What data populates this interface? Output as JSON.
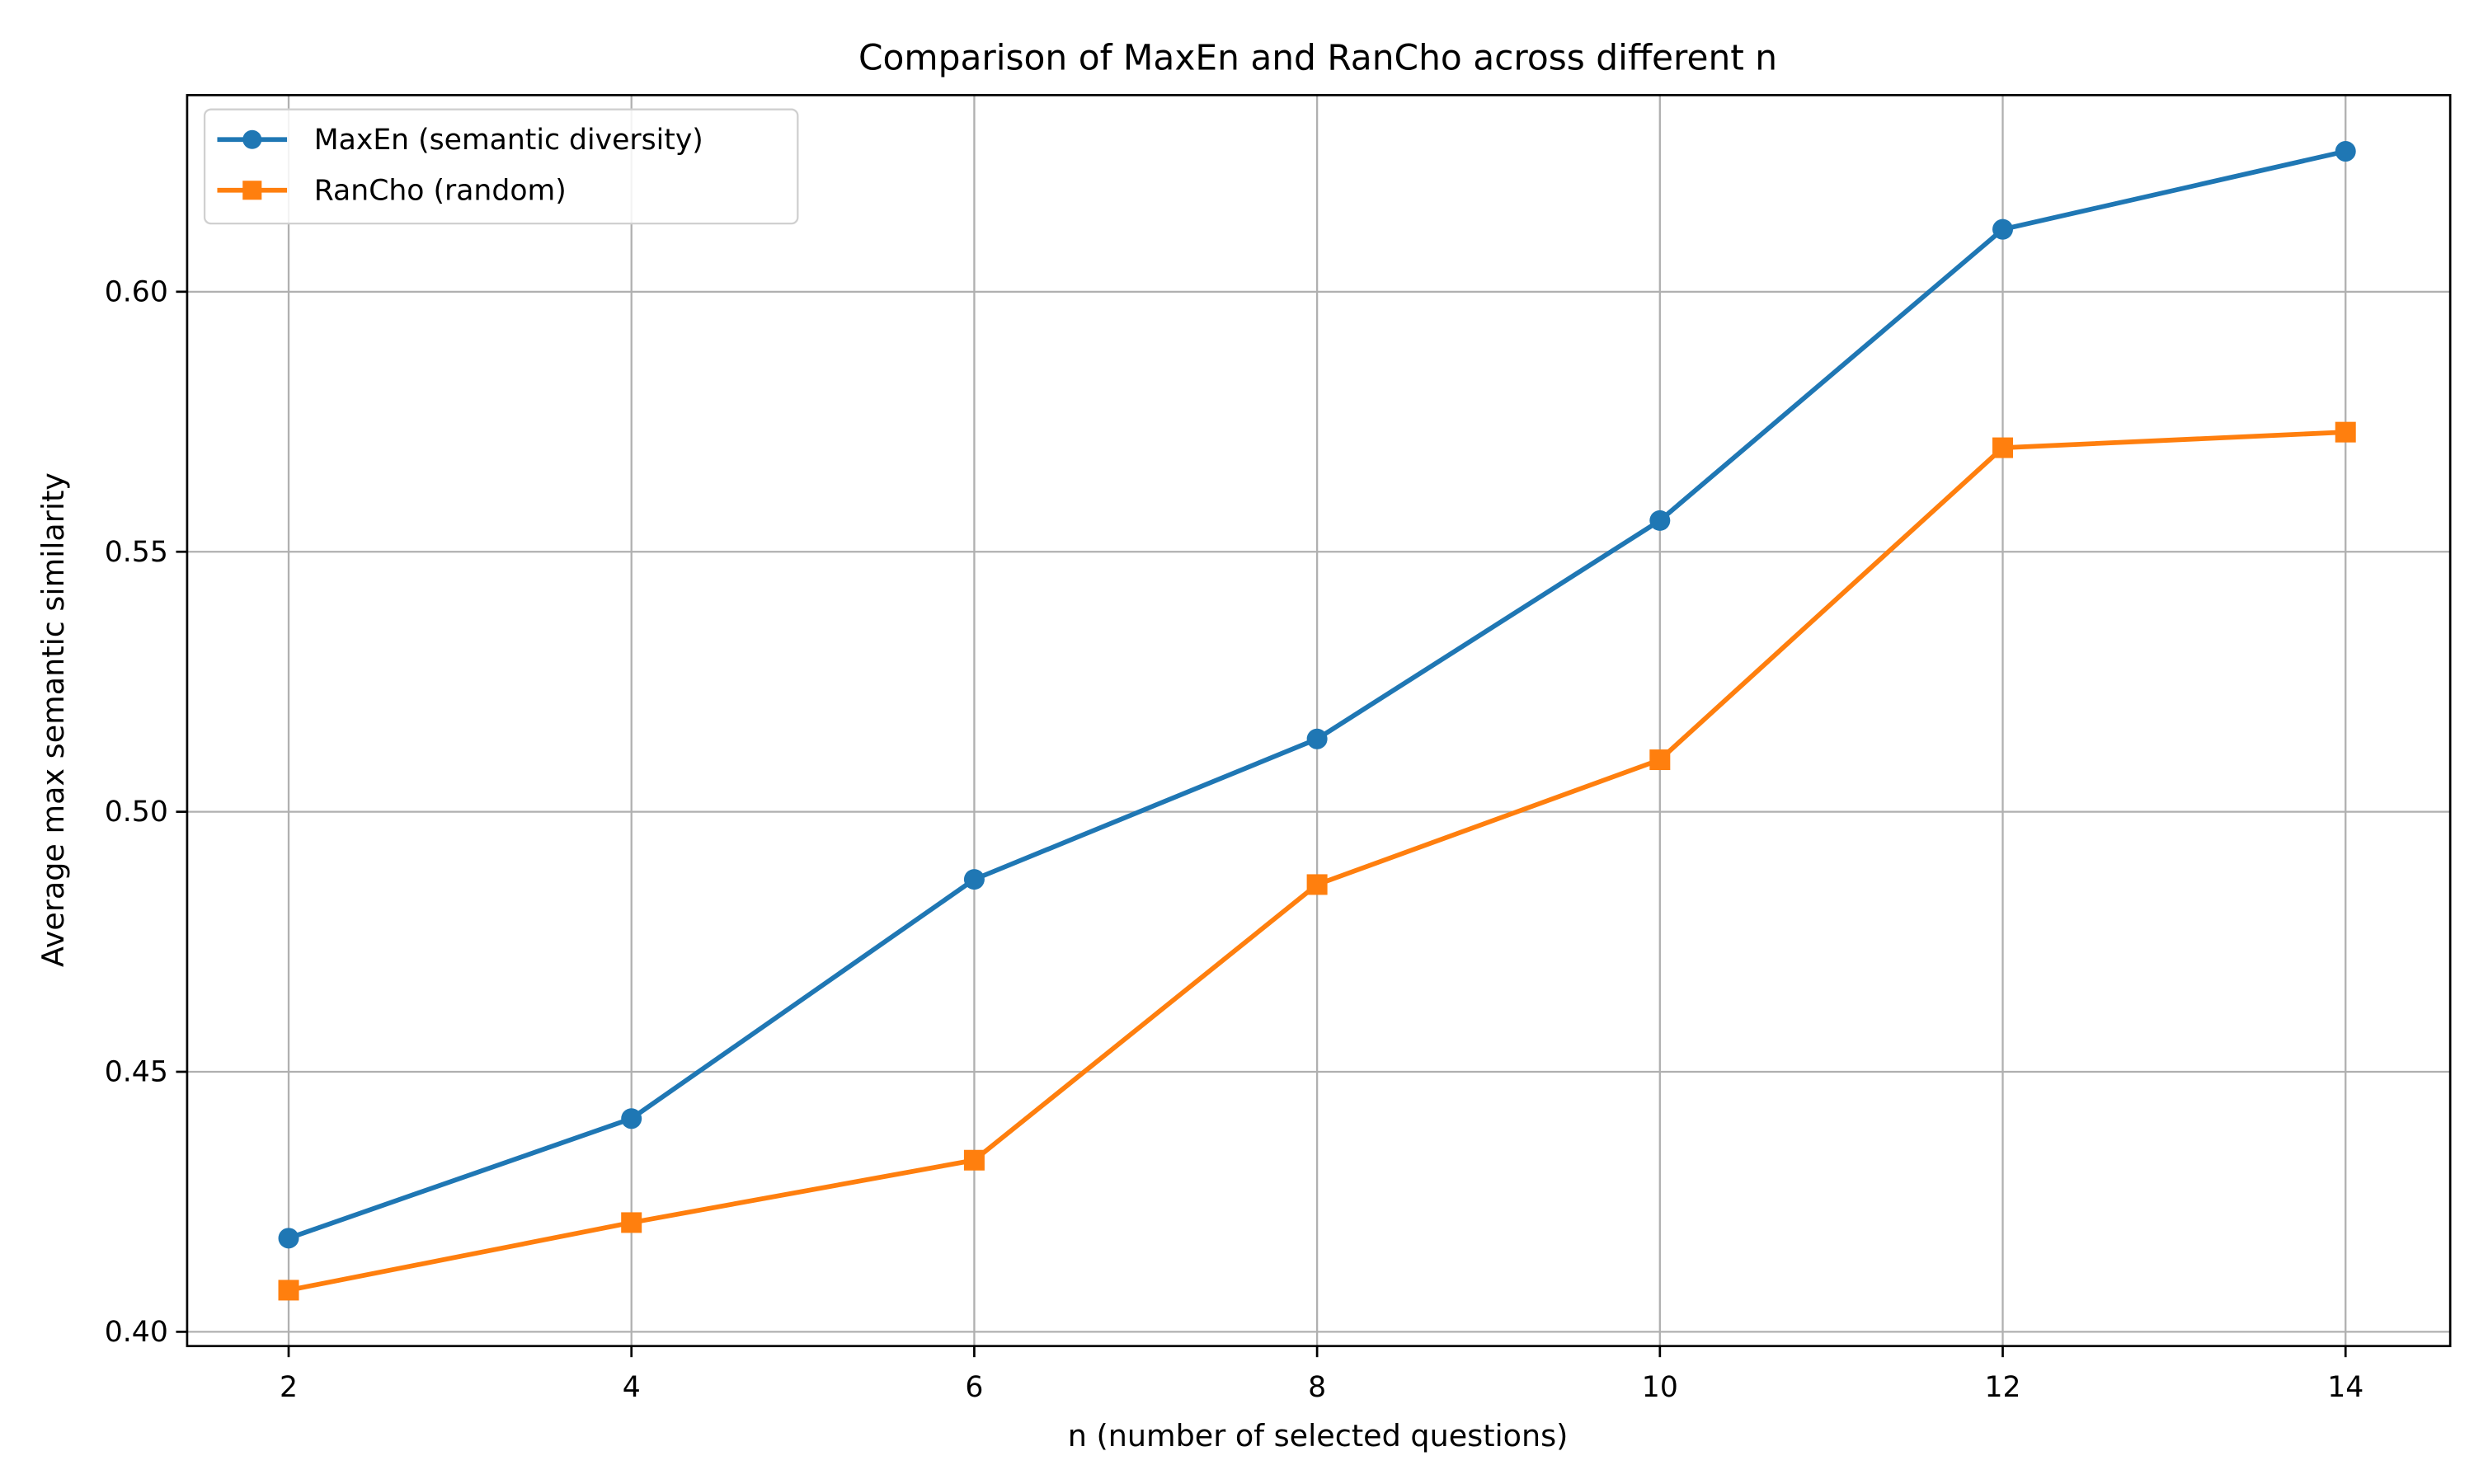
{
  "chart_data": {
    "type": "line",
    "title": "Comparison of MaxEn and RanCho across different n",
    "xlabel": "n (number of selected questions)",
    "ylabel": "Average max semantic similarity",
    "x": [
      2,
      4,
      6,
      8,
      10,
      12,
      14
    ],
    "xticks": [
      2,
      4,
      6,
      8,
      10,
      12,
      14
    ],
    "yticks": [
      0.4,
      0.45,
      0.5,
      0.55,
      0.6
    ],
    "ytick_labels": [
      "0.40",
      "0.45",
      "0.50",
      "0.55",
      "0.60"
    ],
    "xlim": [
      1.4,
      14.6
    ],
    "ylim": [
      0.397,
      0.638
    ],
    "grid": true,
    "legend_position": "upper left",
    "series": [
      {
        "name": "MaxEn (semantic diversity)",
        "color": "#1f77b4",
        "marker": "circle",
        "values": [
          0.418,
          0.441,
          0.487,
          0.514,
          0.556,
          0.612,
          0.627
        ]
      },
      {
        "name": "RanCho (random)",
        "color": "#ff7f0e",
        "marker": "square",
        "values": [
          0.408,
          0.421,
          0.433,
          0.486,
          0.51,
          0.57,
          0.573
        ]
      }
    ]
  }
}
